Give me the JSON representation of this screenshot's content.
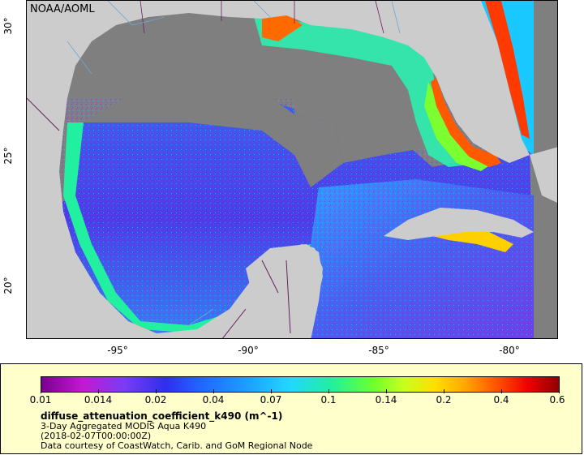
{
  "map": {
    "agency_label": "NOAA/AOML",
    "x_ticks": [
      "-95°",
      "-90°",
      "-85°",
      "-80°"
    ],
    "y_ticks": [
      "30°",
      "25°",
      "20°"
    ],
    "land_color": "#cccccc",
    "nodata_color": "#7f7f7f"
  },
  "legend": {
    "colorbar_ticks": [
      "0.01",
      "0.014",
      "0.02",
      "0.04",
      "0.07",
      "0.1",
      "0.14",
      "0.2",
      "0.4",
      "0.6"
    ],
    "title": "diffuse_attenuation_coefficient_k490 (m^-1)",
    "line1": "3-Day Aggregated MODIS Aqua K490",
    "line2": "(2018-02-07T00:00:00Z)",
    "line3": "Data courtesy of CoastWatch, Carib. and GoM Regional Node",
    "background_color": "#ffffcc"
  }
}
